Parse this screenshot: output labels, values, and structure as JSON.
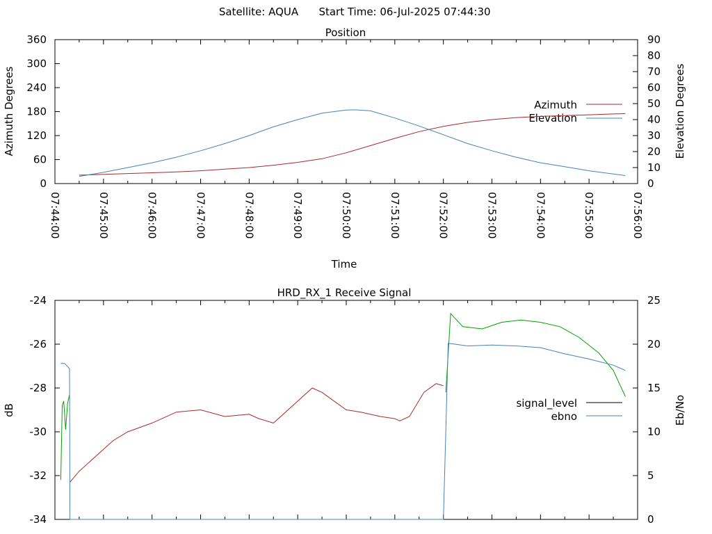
{
  "header": {
    "satellite": "Satellite: AQUA",
    "start_time": "Start Time: 06-Jul-2025 07:44:30"
  },
  "chart_data": [
    {
      "type": "line",
      "title": "Position",
      "xlabel": "Time",
      "ylabel": "Azimuth Degrees",
      "y2label": "Elevation Degrees",
      "x_ticks": [
        "07:44:00",
        "07:45:00",
        "07:46:00",
        "07:47:00",
        "07:48:00",
        "07:49:00",
        "07:50:00",
        "07:51:00",
        "07:52:00",
        "07:53:00",
        "07:54:00",
        "07:55:00",
        "07:56:00"
      ],
      "x_minor_per_major": 2,
      "ylim": [
        0,
        360
      ],
      "y_ticks": [
        "0",
        "60",
        "120",
        "180",
        "240",
        "300",
        "360"
      ],
      "y2lim": [
        0,
        90
      ],
      "y2_ticks": [
        "0",
        "10",
        "20",
        "30",
        "40",
        "50",
        "60",
        "70",
        "80",
        "90"
      ],
      "legend_position": "right",
      "series": [
        {
          "name": "Azimuth",
          "axis": "y",
          "color": "#a52a2a",
          "x": [
            0.5,
            1,
            1.5,
            2,
            2.5,
            3,
            3.5,
            4,
            4.5,
            5,
            5.5,
            6,
            6.5,
            7,
            7.5,
            8,
            8.5,
            9,
            9.5,
            10,
            10.5,
            11,
            11.5,
            11.75
          ],
          "y": [
            21,
            23,
            25,
            27,
            29,
            32,
            36,
            40,
            46,
            53,
            62,
            77,
            95,
            113,
            130,
            143,
            153,
            160,
            165,
            168,
            170,
            172,
            174,
            175
          ]
        },
        {
          "name": "Elevation",
          "axis": "y2",
          "color": "#4682b4",
          "x": [
            0.5,
            1,
            1.5,
            2,
            2.5,
            3,
            3.5,
            4,
            4.5,
            5,
            5.5,
            6,
            6.2,
            6.5,
            7,
            7.5,
            8,
            8.5,
            9,
            9.5,
            10,
            10.5,
            11,
            11.5,
            11.75
          ],
          "y": [
            4.5,
            7,
            10,
            13,
            16.5,
            20.5,
            25,
            30,
            35.5,
            40,
            44,
            46,
            46.1,
            45.5,
            41,
            36,
            30.5,
            25,
            20.5,
            16.5,
            13,
            10.5,
            8,
            6,
            5
          ]
        }
      ]
    },
    {
      "type": "line",
      "title": "HRD_RX_1 Receive Signal",
      "xlabel": "",
      "ylabel": "dB",
      "y2label": "Eb/No",
      "ylim": [
        -34,
        -24
      ],
      "y_ticks": [
        "-34",
        "-32",
        "-30",
        "-28",
        "-26",
        "-24"
      ],
      "y2lim": [
        0,
        25
      ],
      "y2_ticks": [
        "0",
        "5",
        "10",
        "15",
        "20",
        "25"
      ],
      "x_minor_per_major": 2,
      "legend_position": "right",
      "series": [
        {
          "name": "signal_level",
          "axis": "y",
          "color": "#000000",
          "legend_color": "#000000",
          "segments": [
            {
              "color": "#00a000",
              "x": [
                0.12,
                0.15,
                0.18,
                0.22,
                0.26,
                0.3
              ],
              "y": [
                -32.2,
                -28.8,
                -28.6,
                -29.9,
                -28.7,
                -28.3
              ]
            },
            {
              "color": "#a52a2a",
              "x": [
                0.31,
                0.5,
                0.8,
                1.2,
                1.5,
                2,
                2.5,
                3,
                3.5,
                4,
                4.2,
                4.5,
                5,
                5.3,
                5.5,
                6,
                6.3,
                6.7,
                7,
                7.1,
                7.3,
                7.6,
                7.85,
                8.0
              ],
              "y": [
                -32.3,
                -31.8,
                -31.2,
                -30.4,
                -30.0,
                -29.6,
                -29.1,
                -29.0,
                -29.3,
                -29.2,
                -29.4,
                -29.6,
                -28.6,
                -28.0,
                -28.2,
                -29.0,
                -29.1,
                -29.3,
                -29.4,
                -29.5,
                -29.3,
                -28.2,
                -27.8,
                -27.9
              ]
            },
            {
              "color": "#00a000",
              "x": [
                8.05,
                8.15,
                8.4,
                8.8,
                9.2,
                9.6,
                10.0,
                10.4,
                10.8,
                11.2,
                11.5,
                11.75
              ],
              "y": [
                -28.2,
                -24.6,
                -25.2,
                -25.3,
                -25.0,
                -24.9,
                -25.0,
                -25.2,
                -25.7,
                -26.4,
                -27.2,
                -28.4
              ]
            }
          ]
        },
        {
          "name": "ebno",
          "axis": "y2",
          "color": "#4682b4",
          "x": [
            0.12,
            0.2,
            0.3,
            0.31,
            8.0,
            8.1,
            8.5,
            9,
            9.5,
            10,
            10.5,
            11,
            11.5,
            11.75
          ],
          "y": [
            17.8,
            17.8,
            17.2,
            0,
            0,
            20.1,
            19.8,
            19.9,
            19.8,
            19.6,
            18.9,
            18.3,
            17.6,
            17.0
          ]
        }
      ]
    }
  ]
}
